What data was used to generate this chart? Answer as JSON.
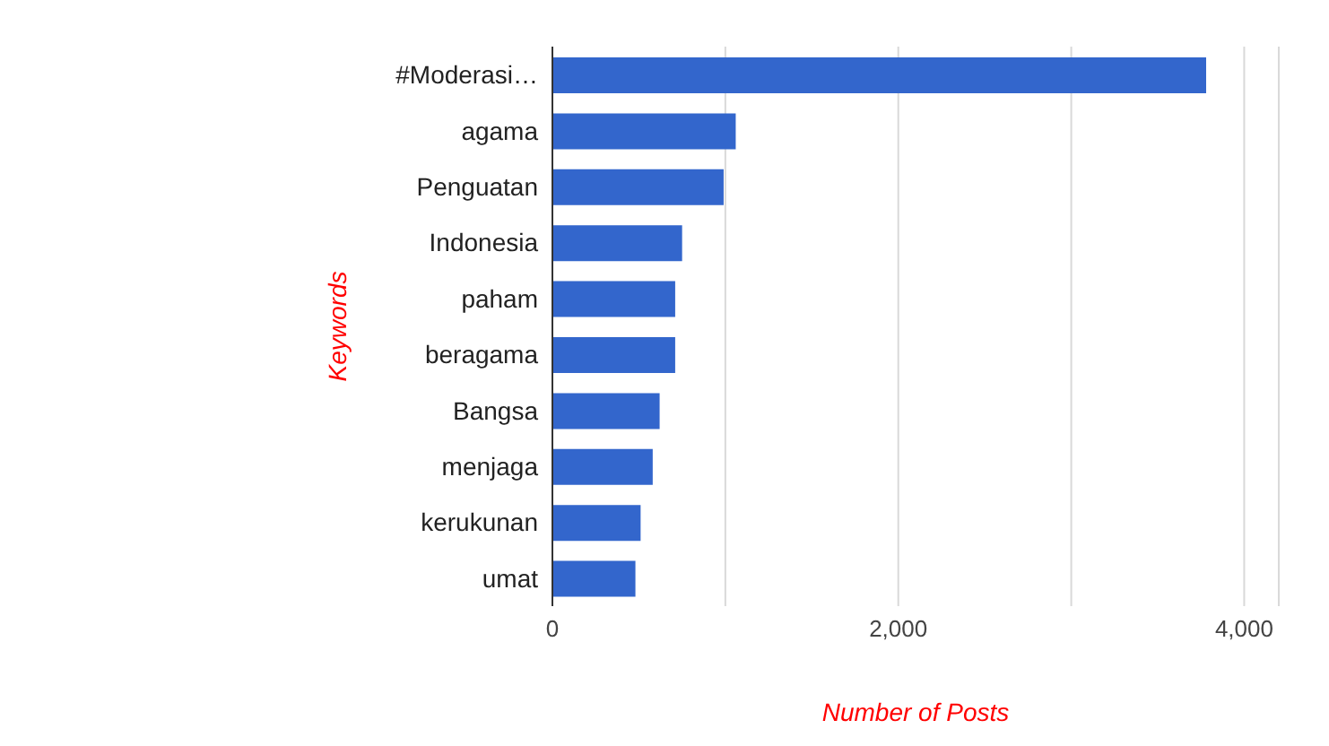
{
  "chart_data": {
    "type": "bar",
    "orientation": "horizontal",
    "xlabel": "Number of Posts",
    "ylabel": "Keywords",
    "categories": [
      "#Moderasi…",
      "agama",
      "Penguatan",
      "Indonesia",
      "paham",
      "beragama",
      "Bangsa",
      "menjaga",
      "kerukunan",
      "umat"
    ],
    "values": [
      3780,
      1060,
      990,
      750,
      710,
      710,
      620,
      580,
      510,
      480
    ],
    "color": "#3366cc",
    "xlim": [
      0,
      4200
    ],
    "xticks": [
      0,
      {
        "value": 1000,
        "label": null
      },
      "2,000",
      {
        "value": 3000,
        "label": null
      },
      {
        "value": 4000,
        "label": "4,000"
      }
    ],
    "grid": "x"
  }
}
